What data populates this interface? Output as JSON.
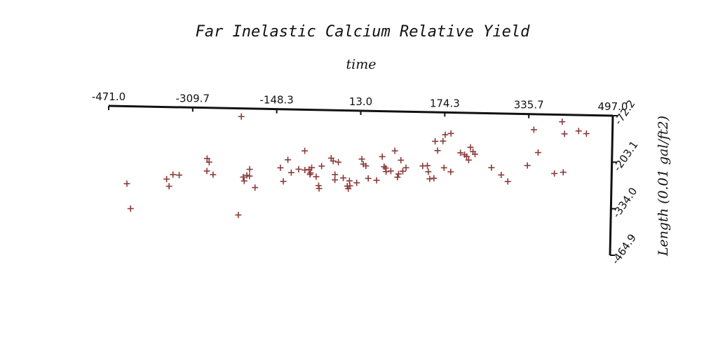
{
  "chart_data": {
    "type": "scatter",
    "title": "Far Inelastic Calcium Relative Yield",
    "xlabel": "time",
    "ylabel": "Length (0.01 gal/ft2)",
    "xlim": [
      -471.0,
      497.0
    ],
    "ylim": [
      -464.9,
      -72.2
    ],
    "x_ticks": [
      "-471.0",
      "-309.7",
      "-148.3",
      "13.0",
      "174.3",
      "335.7",
      "497.0"
    ],
    "y_ticks": [
      "-72.2",
      "-203.1",
      "-334.0",
      "-464.9"
    ],
    "marker": "plus",
    "marker_color": "#8b3a3a",
    "grid": false,
    "legend": "none",
    "points": [
      [
        -433,
        -290
      ],
      [
        -425,
        -360
      ],
      [
        -357,
        -275
      ],
      [
        -352,
        -295
      ],
      [
        -345,
        -262
      ],
      [
        -333,
        -263
      ],
      [
        -280,
        -215
      ],
      [
        -276,
        -225
      ],
      [
        -280,
        -250
      ],
      [
        -268,
        -260
      ],
      [
        -216,
        -95
      ],
      [
        -218,
        -372
      ],
      [
        -210,
        -265
      ],
      [
        -208,
        -276
      ],
      [
        -203,
        -260
      ],
      [
        -198,
        -262
      ],
      [
        -198,
        -243
      ],
      [
        -187,
        -294
      ],
      [
        -139,
        -237
      ],
      [
        -133,
        -275
      ],
      [
        -125,
        -214
      ],
      [
        -118,
        -250
      ],
      [
        -104,
        -240
      ],
      [
        -92,
        -242
      ],
      [
        -84,
        -240
      ],
      [
        -79,
        -235
      ],
      [
        -81,
        -250
      ],
      [
        -82,
        -254
      ],
      [
        -70,
        -260
      ],
      [
        -65,
        -285
      ],
      [
        -60,
        -230
      ],
      [
        -64,
        -293
      ],
      [
        -93,
        -188
      ],
      [
        -42,
        -207
      ],
      [
        -38,
        -215
      ],
      [
        -28,
        -218
      ],
      [
        -34,
        -253
      ],
      [
        -34,
        -268
      ],
      [
        -18,
        -262
      ],
      [
        -10,
        -285
      ],
      [
        -8,
        -292
      ],
      [
        -6,
        -270
      ],
      [
        -5,
        -284
      ],
      [
        8,
        -275
      ],
      [
        17,
        -208
      ],
      [
        20,
        -222
      ],
      [
        25,
        -227
      ],
      [
        30,
        -262
      ],
      [
        46,
        -267
      ],
      [
        56,
        -200
      ],
      [
        60,
        -228
      ],
      [
        63,
        -232
      ],
      [
        64,
        -242
      ],
      [
        73,
        -240
      ],
      [
        88,
        -248
      ],
      [
        86,
        -257
      ],
      [
        96,
        -240
      ],
      [
        102,
        -230
      ],
      [
        92,
        -209
      ],
      [
        80,
        -183
      ],
      [
        134,
        -224
      ],
      [
        143,
        -223
      ],
      [
        145,
        -240
      ],
      [
        156,
        -258
      ],
      [
        148,
        -260
      ],
      [
        157,
        -154
      ],
      [
        162,
        -180
      ],
      [
        175,
        -228
      ],
      [
        188,
        -239
      ],
      [
        172,
        -153
      ],
      [
        176,
        -135
      ],
      [
        187,
        -131
      ],
      [
        206,
        -185
      ],
      [
        214,
        -190
      ],
      [
        218,
        -195
      ],
      [
        222,
        -205
      ],
      [
        225,
        -169
      ],
      [
        230,
        -181
      ],
      [
        234,
        -188
      ],
      [
        266,
        -225
      ],
      [
        285,
        -245
      ],
      [
        298,
        -263
      ],
      [
        335,
        -217
      ],
      [
        355,
        -180
      ],
      [
        346,
        -116
      ],
      [
        387,
        -238
      ],
      [
        404,
        -234
      ],
      [
        400,
        -92
      ],
      [
        405,
        -126
      ],
      [
        432,
        -117
      ],
      [
        447,
        -124
      ]
    ]
  }
}
